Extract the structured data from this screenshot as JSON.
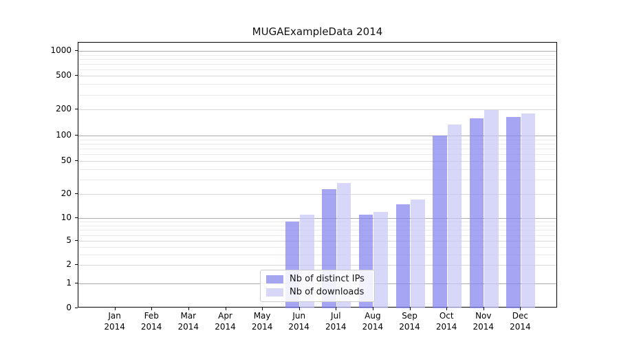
{
  "title": "MUGAExampleData 2014",
  "chart_data": {
    "type": "bar",
    "title": "MUGAExampleData 2014",
    "categories": [
      "Jan 2014",
      "Feb 2014",
      "Mar 2014",
      "Apr 2014",
      "May 2014",
      "Jun 2014",
      "Jul 2014",
      "Aug 2014",
      "Sep 2014",
      "Oct 2014",
      "Nov 2014",
      "Dec 2014"
    ],
    "series": [
      {
        "name": "Nb of distinct IPs",
        "color": "#a5a5f0",
        "fill": "rgba(130,130,238,0.72)",
        "values": [
          0,
          0,
          0,
          0,
          0,
          9,
          23,
          11,
          15,
          100,
          158,
          163
        ]
      },
      {
        "name": "Nb of downloads",
        "color": "#d7d7f7",
        "fill": "rgba(200,200,247,0.72)",
        "values": [
          0,
          0,
          0,
          0,
          0,
          11,
          27,
          12,
          17,
          135,
          199,
          179
        ]
      }
    ],
    "xlabel": "",
    "ylabel": "",
    "yscale": "symlog",
    "yticks": [
      0,
      1,
      2,
      5,
      10,
      20,
      50,
      100,
      200,
      500,
      1000
    ],
    "ylim": [
      0,
      1100
    ],
    "grid": true,
    "legend_position": "lower center"
  },
  "colors": {
    "grid_decade": "#ababab",
    "grid_labeled": "#d7d7d7",
    "grid_minor": "#ebebeb",
    "spine": "#000000"
  }
}
